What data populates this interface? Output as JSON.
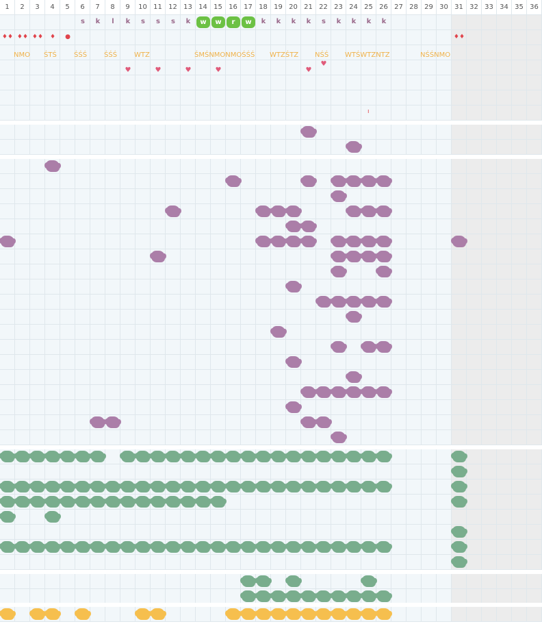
{
  "header": {
    "days": [
      "1",
      "2",
      "3",
      "4",
      "5",
      "6",
      "7",
      "8",
      "9",
      "10",
      "11",
      "12",
      "13",
      "14",
      "15",
      "16",
      "17",
      "18",
      "19",
      "20",
      "21",
      "22",
      "23",
      "24",
      "25",
      "26",
      "27",
      "28",
      "29",
      "30",
      "31",
      "32",
      "33",
      "34",
      "35",
      "36"
    ]
  },
  "colors": {
    "grid": "#dfe7ec",
    "cell_bg": "#f2f7fa",
    "shaded": "#ececec",
    "purple": "#ab7ea8",
    "green": "#79ad8d",
    "yellow": "#f6bf4e",
    "bright_green": "#6cc144",
    "letters": "#9b6b8c",
    "labels": "#f0b24a",
    "heart": "#e05b7a",
    "drop": "#e0444c"
  },
  "row_letters": [
    {
      "col": 6,
      "t": "s"
    },
    {
      "col": 7,
      "t": "k"
    },
    {
      "col": 8,
      "t": "l"
    },
    {
      "col": 9,
      "t": "k"
    },
    {
      "col": 10,
      "t": "s"
    },
    {
      "col": 11,
      "t": "s"
    },
    {
      "col": 12,
      "t": "s"
    },
    {
      "col": 13,
      "t": "k"
    },
    {
      "col": 18,
      "t": "k"
    },
    {
      "col": 19,
      "t": "k"
    },
    {
      "col": 20,
      "t": "k"
    },
    {
      "col": 21,
      "t": "k"
    },
    {
      "col": 22,
      "t": "s"
    },
    {
      "col": 23,
      "t": "k"
    },
    {
      "col": 24,
      "t": "k"
    },
    {
      "col": 25,
      "t": "k"
    },
    {
      "col": 26,
      "t": "k"
    }
  ],
  "row_wboxes": [
    {
      "col": 14,
      "t": "w"
    },
    {
      "col": 15,
      "t": "w"
    },
    {
      "col": 16,
      "t": "r"
    },
    {
      "col": 17,
      "t": "w"
    }
  ],
  "row_drops": [
    {
      "col": 1,
      "t": "♦♦"
    },
    {
      "col": 2,
      "t": "♦♦"
    },
    {
      "col": 3,
      "t": "♦♦"
    },
    {
      "col": 4,
      "t": "♦"
    },
    {
      "col": 5,
      "t": "●"
    },
    {
      "col": 31,
      "t": "♦♦"
    }
  ],
  "row_labels": [
    {
      "col": 2,
      "t": "NMO"
    },
    {
      "col": 4,
      "t": "ŚTŚ"
    },
    {
      "col": 6,
      "t": "ŚŚŚ"
    },
    {
      "col": 8,
      "t": "ŚŚŚ"
    },
    {
      "col": 10,
      "t": "WTZ"
    },
    {
      "col": 14,
      "t": "ŚMŚNMONMOŚŚŚ"
    },
    {
      "col": 19,
      "t": "WTZŚTZ"
    },
    {
      "col": 22,
      "t": "NŚŚ"
    },
    {
      "col": 24,
      "t": "WTŚWTZNTZ"
    },
    {
      "col": 29,
      "t": "NŚŚNMO"
    }
  ],
  "row_hearts": [
    {
      "col": 9,
      "t": "♥"
    },
    {
      "col": 11,
      "t": "♥"
    },
    {
      "col": 13,
      "t": "♥"
    },
    {
      "col": 15,
      "t": "♥"
    },
    {
      "col": 21,
      "t": "♥"
    },
    {
      "col": 22,
      "t": "♥"
    }
  ],
  "row_marks": [
    {
      "col": 25,
      "t": "ı"
    }
  ],
  "purple_cells": [
    [
      21,
      0
    ],
    [
      24,
      1
    ],
    [
      4,
      2
    ],
    [
      16,
      3
    ],
    [
      21,
      3
    ],
    [
      23,
      3
    ],
    [
      24,
      3
    ],
    [
      25,
      3
    ],
    [
      26,
      3
    ],
    [
      23,
      4
    ],
    [
      12,
      5
    ],
    [
      18,
      5
    ],
    [
      19,
      5
    ],
    [
      20,
      5
    ],
    [
      24,
      5
    ],
    [
      25,
      5
    ],
    [
      26,
      5
    ],
    [
      20,
      6
    ],
    [
      21,
      6
    ],
    [
      1,
      7
    ],
    [
      18,
      7
    ],
    [
      19,
      7
    ],
    [
      20,
      7
    ],
    [
      21,
      7
    ],
    [
      23,
      7
    ],
    [
      24,
      7
    ],
    [
      25,
      7
    ],
    [
      26,
      7
    ],
    [
      31,
      7
    ],
    [
      11,
      8
    ],
    [
      23,
      8
    ],
    [
      24,
      8
    ],
    [
      25,
      8
    ],
    [
      26,
      8
    ],
    [
      23,
      9
    ],
    [
      26,
      9
    ],
    [
      20,
      10
    ],
    [
      22,
      11
    ],
    [
      23,
      11
    ],
    [
      24,
      11
    ],
    [
      25,
      11
    ],
    [
      26,
      11
    ],
    [
      24,
      12
    ],
    [
      19,
      13
    ],
    [
      23,
      14
    ],
    [
      25,
      14
    ],
    [
      26,
      14
    ],
    [
      20,
      15
    ],
    [
      24,
      16
    ],
    [
      21,
      17
    ],
    [
      22,
      17
    ],
    [
      23,
      17
    ],
    [
      24,
      17
    ],
    [
      25,
      17
    ],
    [
      26,
      17
    ],
    [
      20,
      18
    ],
    [
      7,
      19
    ],
    [
      8,
      19
    ],
    [
      21,
      19
    ],
    [
      22,
      19
    ],
    [
      23,
      20
    ]
  ],
  "green_cells_rows": [
    {
      "row": 0,
      "cols": [
        1,
        2,
        3,
        4,
        5,
        6,
        7,
        9,
        10,
        11,
        12,
        13,
        14,
        15,
        16,
        17,
        18,
        19,
        20,
        21,
        22,
        23,
        24,
        25,
        26,
        31
      ]
    },
    {
      "row": 1,
      "cols": [
        31
      ]
    },
    {
      "row": 2,
      "cols": [
        1,
        2,
        3,
        4,
        5,
        6,
        7,
        8,
        9,
        10,
        11,
        12,
        13,
        14,
        15,
        16,
        17,
        18,
        19,
        20,
        21,
        22,
        23,
        24,
        25,
        26,
        31
      ]
    },
    {
      "row": 3,
      "cols": [
        1,
        2,
        3,
        4,
        5,
        6,
        7,
        8,
        9,
        10,
        11,
        12,
        13,
        14,
        15,
        31
      ]
    },
    {
      "row": 4,
      "cols": [
        1,
        4
      ]
    },
    {
      "row": 5,
      "cols": [
        31
      ]
    },
    {
      "row": 6,
      "cols": [
        1,
        2,
        3,
        4,
        5,
        6,
        7,
        8,
        9,
        10,
        11,
        12,
        13,
        14,
        15,
        16,
        17,
        18,
        19,
        20,
        21,
        22,
        23,
        24,
        25,
        26,
        31
      ]
    },
    {
      "row": 7,
      "cols": [
        31
      ]
    }
  ],
  "green2_cells_rows": [
    {
      "row": 0,
      "cols": [
        17,
        18,
        20,
        25
      ]
    },
    {
      "row": 1,
      "cols": [
        17,
        18,
        19,
        20,
        21,
        22,
        23,
        24,
        25,
        26
      ]
    }
  ],
  "yellow_cols": [
    1,
    3,
    4,
    6,
    10,
    11,
    16,
    17,
    18,
    19,
    20,
    21,
    22,
    23,
    24,
    25,
    26
  ]
}
